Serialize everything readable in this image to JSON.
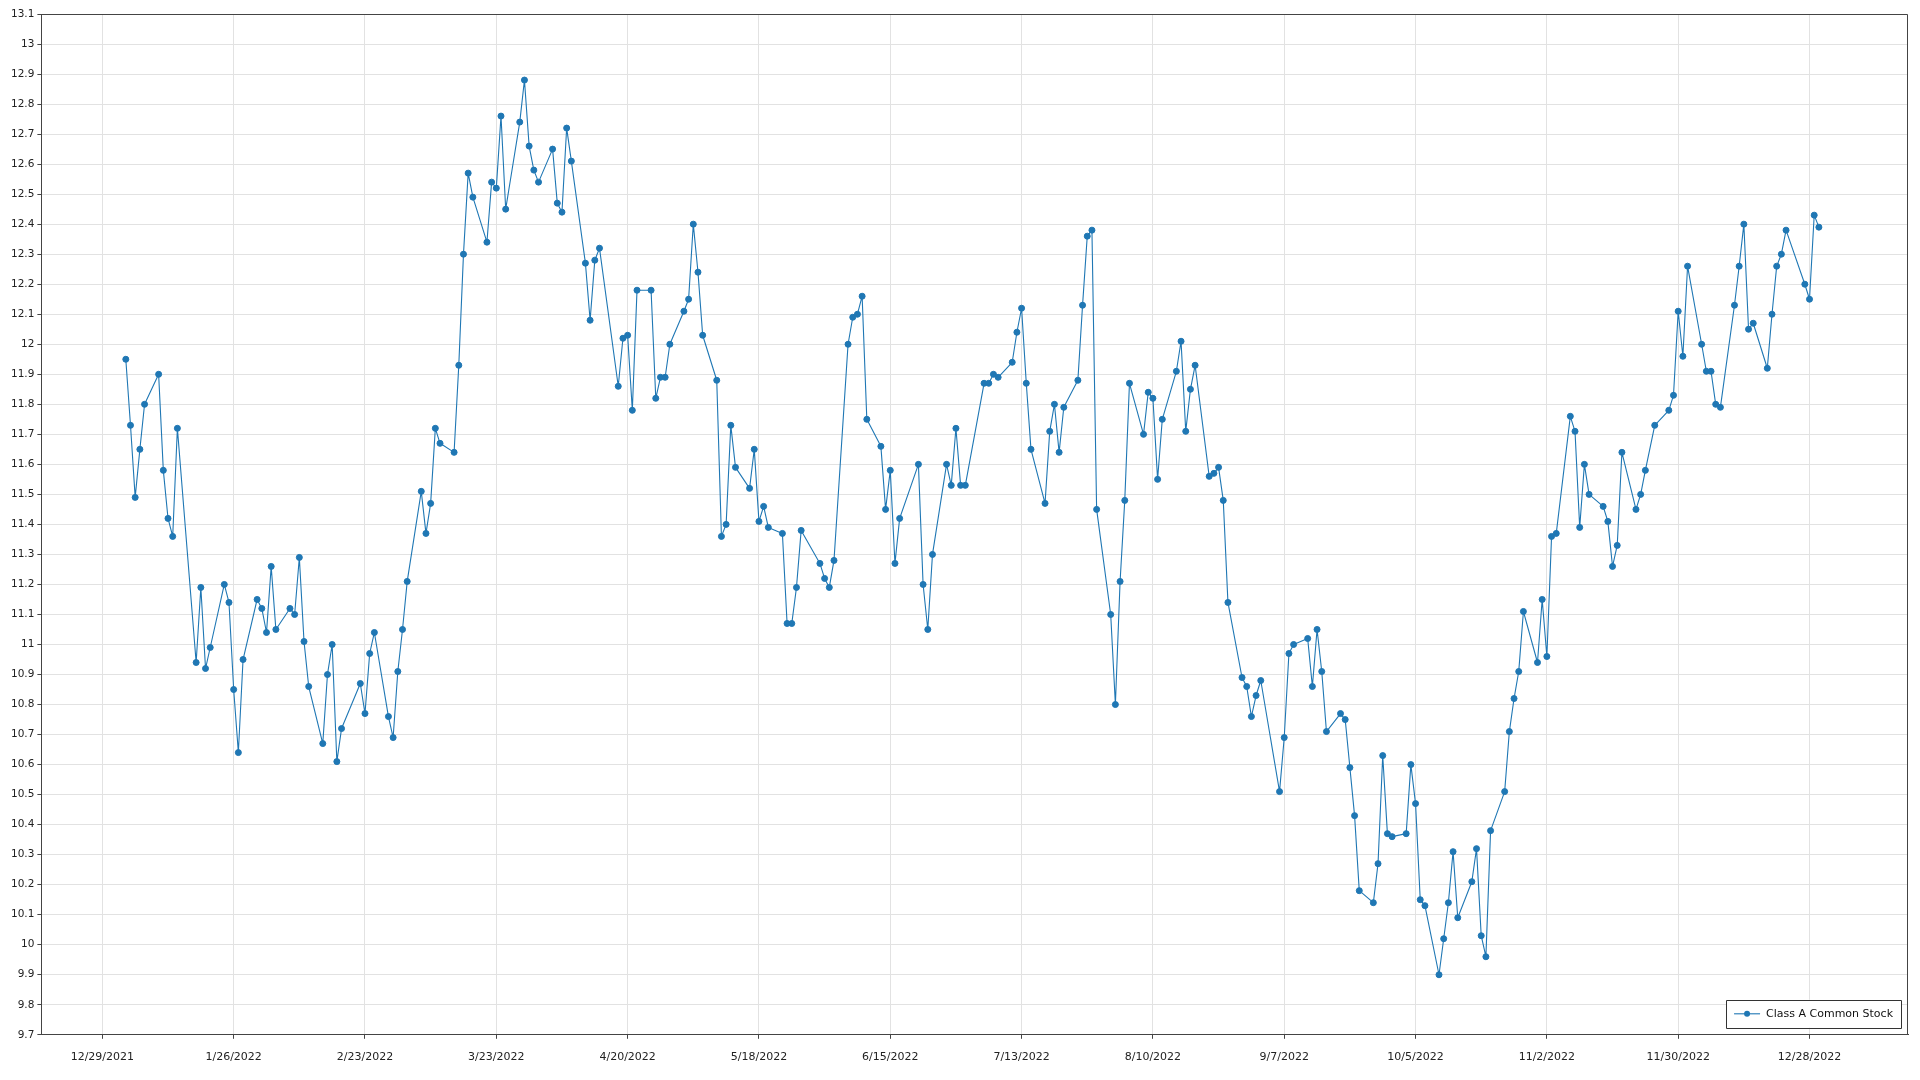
{
  "chart_data": {
    "type": "line",
    "x": [
      "2022-01-03",
      "2022-01-04",
      "2022-01-05",
      "2022-01-06",
      "2022-01-07",
      "2022-01-10",
      "2022-01-11",
      "2022-01-12",
      "2022-01-13",
      "2022-01-14",
      "2022-01-18",
      "2022-01-19",
      "2022-01-20",
      "2022-01-21",
      "2022-01-24",
      "2022-01-25",
      "2022-01-26",
      "2022-01-27",
      "2022-01-28",
      "2022-01-31",
      "2022-02-01",
      "2022-02-02",
      "2022-02-03",
      "2022-02-04",
      "2022-02-07",
      "2022-02-08",
      "2022-02-09",
      "2022-02-10",
      "2022-02-11",
      "2022-02-14",
      "2022-02-15",
      "2022-02-16",
      "2022-02-17",
      "2022-02-18",
      "2022-02-22",
      "2022-02-23",
      "2022-02-24",
      "2022-02-25",
      "2022-02-28",
      "2022-03-01",
      "2022-03-02",
      "2022-03-03",
      "2022-03-04",
      "2022-03-07",
      "2022-03-08",
      "2022-03-09",
      "2022-03-10",
      "2022-03-11",
      "2022-03-14",
      "2022-03-15",
      "2022-03-16",
      "2022-03-17",
      "2022-03-18",
      "2022-03-21",
      "2022-03-22",
      "2022-03-23",
      "2022-03-24",
      "2022-03-25",
      "2022-03-28",
      "2022-03-29",
      "2022-03-30",
      "2022-03-31",
      "2022-04-01",
      "2022-04-04",
      "2022-04-05",
      "2022-04-06",
      "2022-04-07",
      "2022-04-08",
      "2022-04-11",
      "2022-04-12",
      "2022-04-13",
      "2022-04-14",
      "2022-04-18",
      "2022-04-19",
      "2022-04-20",
      "2022-04-21",
      "2022-04-22",
      "2022-04-25",
      "2022-04-26",
      "2022-04-27",
      "2022-04-28",
      "2022-04-29",
      "2022-05-02",
      "2022-05-03",
      "2022-05-04",
      "2022-05-05",
      "2022-05-06",
      "2022-05-09",
      "2022-05-10",
      "2022-05-11",
      "2022-05-12",
      "2022-05-13",
      "2022-05-16",
      "2022-05-17",
      "2022-05-18",
      "2022-05-19",
      "2022-05-20",
      "2022-05-23",
      "2022-05-24",
      "2022-05-25",
      "2022-05-26",
      "2022-05-27",
      "2022-05-31",
      "2022-06-01",
      "2022-06-02",
      "2022-06-03",
      "2022-06-06",
      "2022-06-07",
      "2022-06-08",
      "2022-06-09",
      "2022-06-10",
      "2022-06-13",
      "2022-06-14",
      "2022-06-15",
      "2022-06-16",
      "2022-06-17",
      "2022-06-21",
      "2022-06-22",
      "2022-06-23",
      "2022-06-24",
      "2022-06-27",
      "2022-06-28",
      "2022-06-29",
      "2022-06-30",
      "2022-07-01",
      "2022-07-05",
      "2022-07-06",
      "2022-07-07",
      "2022-07-08",
      "2022-07-11",
      "2022-07-12",
      "2022-07-13",
      "2022-07-14",
      "2022-07-15",
      "2022-07-18",
      "2022-07-19",
      "2022-07-20",
      "2022-07-21",
      "2022-07-22",
      "2022-07-25",
      "2022-07-26",
      "2022-07-27",
      "2022-07-28",
      "2022-07-29",
      "2022-08-01",
      "2022-08-02",
      "2022-08-03",
      "2022-08-04",
      "2022-08-05",
      "2022-08-08",
      "2022-08-09",
      "2022-08-10",
      "2022-08-11",
      "2022-08-12",
      "2022-08-15",
      "2022-08-16",
      "2022-08-17",
      "2022-08-18",
      "2022-08-19",
      "2022-08-22",
      "2022-08-23",
      "2022-08-24",
      "2022-08-25",
      "2022-08-26",
      "2022-08-29",
      "2022-08-30",
      "2022-08-31",
      "2022-09-01",
      "2022-09-02",
      "2022-09-06",
      "2022-09-07",
      "2022-09-08",
      "2022-09-09",
      "2022-09-12",
      "2022-09-13",
      "2022-09-14",
      "2022-09-15",
      "2022-09-16",
      "2022-09-19",
      "2022-09-20",
      "2022-09-21",
      "2022-09-22",
      "2022-09-23",
      "2022-09-26",
      "2022-09-27",
      "2022-09-28",
      "2022-09-29",
      "2022-09-30",
      "2022-10-03",
      "2022-10-04",
      "2022-10-05",
      "2022-10-06",
      "2022-10-07",
      "2022-10-10",
      "2022-10-11",
      "2022-10-12",
      "2022-10-13",
      "2022-10-14",
      "2022-10-17",
      "2022-10-18",
      "2022-10-19",
      "2022-10-20",
      "2022-10-21",
      "2022-10-24",
      "2022-10-25",
      "2022-10-26",
      "2022-10-27",
      "2022-10-28",
      "2022-10-31",
      "2022-11-01",
      "2022-11-02",
      "2022-11-03",
      "2022-11-04",
      "2022-11-07",
      "2022-11-08",
      "2022-11-09",
      "2022-11-10",
      "2022-11-11",
      "2022-11-14",
      "2022-11-15",
      "2022-11-16",
      "2022-11-17",
      "2022-11-18",
      "2022-11-21",
      "2022-11-22",
      "2022-11-23",
      "2022-11-25",
      "2022-11-28",
      "2022-11-29",
      "2022-11-30",
      "2022-12-01",
      "2022-12-02",
      "2022-12-05",
      "2022-12-06",
      "2022-12-07",
      "2022-12-08",
      "2022-12-09",
      "2022-12-12",
      "2022-12-13",
      "2022-12-14",
      "2022-12-15",
      "2022-12-16",
      "2022-12-19",
      "2022-12-20",
      "2022-12-21",
      "2022-12-22",
      "2022-12-23",
      "2022-12-27",
      "2022-12-28",
      "2022-12-29",
      "2022-12-30"
    ],
    "series": [
      {
        "name": "Class A Common Stock",
        "color": "#1f77b4",
        "values": [
          11.95,
          11.73,
          11.49,
          11.65,
          11.8,
          11.9,
          11.58,
          11.42,
          11.36,
          11.72,
          10.94,
          11.19,
          10.92,
          10.99,
          11.2,
          11.14,
          10.85,
          10.64,
          10.95,
          11.15,
          11.12,
          11.04,
          11.26,
          11.05,
          11.12,
          11.1,
          11.29,
          11.01,
          10.86,
          10.67,
          10.9,
          11.0,
          10.61,
          10.72,
          10.87,
          10.77,
          10.97,
          11.04,
          10.76,
          10.69,
          10.91,
          11.05,
          11.21,
          11.51,
          11.37,
          11.47,
          11.72,
          11.67,
          11.64,
          11.93,
          12.3,
          12.57,
          12.49,
          12.34,
          12.54,
          12.52,
          12.76,
          12.45,
          12.74,
          12.88,
          12.66,
          12.58,
          12.54,
          12.65,
          12.47,
          12.44,
          12.72,
          12.61,
          12.27,
          12.08,
          12.28,
          12.32,
          11.86,
          12.02,
          12.03,
          11.78,
          12.18,
          12.18,
          11.82,
          11.89,
          11.89,
          12.0,
          12.11,
          12.15,
          12.4,
          12.24,
          12.03,
          11.88,
          11.36,
          11.4,
          11.73,
          11.59,
          11.52,
          11.65,
          11.41,
          11.46,
          11.39,
          11.37,
          11.07,
          11.07,
          11.19,
          11.38,
          11.27,
          11.22,
          11.19,
          11.28,
          12.0,
          12.09,
          12.1,
          12.16,
          11.75,
          11.66,
          11.45,
          11.58,
          11.27,
          11.42,
          11.6,
          11.2,
          11.05,
          11.3,
          11.6,
          11.53,
          11.72,
          11.53,
          11.53,
          11.87,
          11.87,
          11.9,
          11.89,
          11.94,
          12.04,
          12.12,
          11.87,
          11.65,
          11.47,
          11.71,
          11.8,
          11.64,
          11.79,
          11.88,
          12.13,
          12.36,
          12.38,
          11.45,
          11.1,
          10.8,
          11.21,
          11.48,
          11.87,
          11.7,
          11.84,
          11.82,
          11.55,
          11.75,
          11.91,
          12.01,
          11.71,
          11.85,
          11.93,
          11.56,
          11.57,
          11.59,
          11.48,
          11.14,
          10.89,
          10.86,
          10.76,
          10.83,
          10.88,
          10.51,
          10.69,
          10.97,
          11.0,
          11.02,
          10.86,
          11.05,
          10.91,
          10.71,
          10.77,
          10.75,
          10.59,
          10.43,
          10.18,
          10.14,
          10.27,
          10.63,
          10.37,
          10.36,
          10.37,
          10.6,
          10.47,
          10.15,
          10.13,
          9.9,
          10.02,
          10.14,
          10.31,
          10.09,
          10.21,
          10.32,
          10.03,
          9.96,
          10.38,
          10.51,
          10.71,
          10.82,
          10.91,
          11.11,
          10.94,
          11.15,
          10.96,
          11.36,
          11.37,
          11.76,
          11.71,
          11.39,
          11.6,
          11.5,
          11.46,
          11.41,
          11.26,
          11.33,
          11.64,
          11.45,
          11.5,
          11.58,
          11.73,
          11.78,
          11.83,
          12.11,
          11.96,
          12.26,
          12.0,
          11.91,
          11.91,
          11.8,
          11.79,
          12.13,
          12.26,
          12.4,
          12.05,
          12.07,
          11.92,
          12.1,
          12.26,
          12.3,
          12.38,
          12.2,
          12.15,
          12.43,
          12.39
        ]
      }
    ],
    "xlim": [
      "2021-12-16",
      "2023-01-18"
    ],
    "xticks": [
      {
        "value": "2021-12-29",
        "label": "12/29/2021"
      },
      {
        "value": "2022-01-26",
        "label": "1/26/2022"
      },
      {
        "value": "2022-02-23",
        "label": "2/23/2022"
      },
      {
        "value": "2022-03-23",
        "label": "3/23/2022"
      },
      {
        "value": "2022-04-20",
        "label": "4/20/2022"
      },
      {
        "value": "2022-05-18",
        "label": "5/18/2022"
      },
      {
        "value": "2022-06-15",
        "label": "6/15/2022"
      },
      {
        "value": "2022-07-13",
        "label": "7/13/2022"
      },
      {
        "value": "2022-08-10",
        "label": "8/10/2022"
      },
      {
        "value": "2022-09-07",
        "label": "9/7/2022"
      },
      {
        "value": "2022-10-05",
        "label": "10/5/2022"
      },
      {
        "value": "2022-11-02",
        "label": "11/2/2022"
      },
      {
        "value": "2022-11-30",
        "label": "11/30/2022"
      },
      {
        "value": "2022-12-28",
        "label": "12/28/2022"
      }
    ],
    "ylim": [
      9.7,
      13.1
    ],
    "yticks": [
      9.7,
      9.8,
      9.9,
      10,
      10.1,
      10.2,
      10.3,
      10.4,
      10.5,
      10.6,
      10.7,
      10.8,
      10.9,
      11,
      11.1,
      11.2,
      11.3,
      11.4,
      11.5,
      11.6,
      11.7,
      11.8,
      11.9,
      12,
      12.1,
      12.2,
      12.3,
      12.4,
      12.5,
      12.6,
      12.7,
      12.8,
      12.9,
      13,
      13.1
    ],
    "grid": true,
    "legend": "bottom right",
    "marker": "circle",
    "line_style": "solid"
  }
}
